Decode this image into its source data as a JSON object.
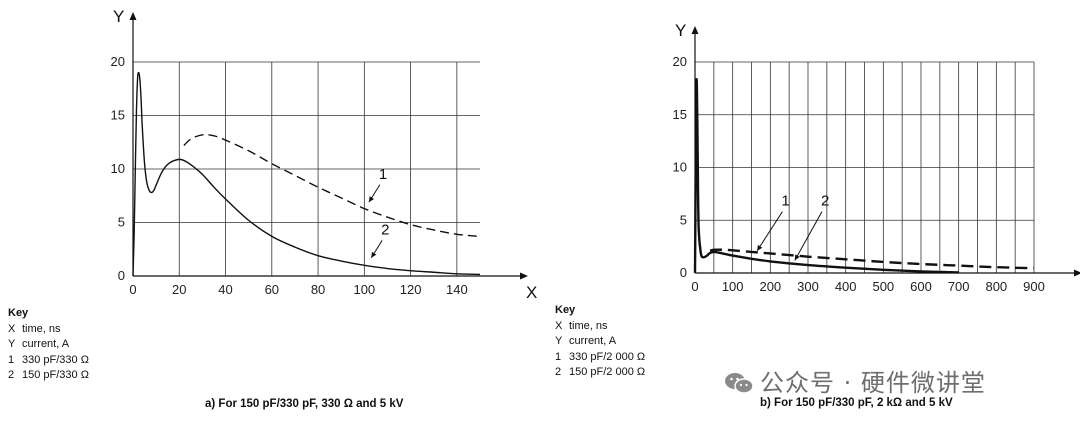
{
  "chart_data": [
    {
      "type": "line",
      "caption": "a)   For 150 pF/330 pF, 330 Ω and 5 kV",
      "xlabel": "X",
      "ylabel": "Y",
      "xlim": [
        0,
        150
      ],
      "ylim": [
        0,
        20
      ],
      "xticks": [
        0,
        20,
        40,
        60,
        80,
        100,
        120,
        140
      ],
      "yticks": [
        0,
        5,
        10,
        15,
        20
      ],
      "grid": true,
      "series": [
        {
          "name": "1",
          "style": "dashed",
          "x": [
            22,
            25,
            30,
            35,
            40,
            50,
            60,
            70,
            80,
            90,
            100,
            110,
            120,
            130,
            140,
            150
          ],
          "y": [
            12.2,
            12.8,
            13.2,
            13.1,
            12.7,
            11.7,
            10.5,
            9.4,
            8.3,
            7.3,
            6.3,
            5.5,
            4.8,
            4.3,
            3.9,
            3.7
          ]
        },
        {
          "name": "2",
          "style": "solid",
          "x": [
            0,
            0.5,
            1,
            1.5,
            2,
            2.5,
            3,
            3.5,
            4,
            5,
            6,
            7,
            8,
            9,
            10,
            12,
            14,
            16,
            18,
            20,
            22,
            25,
            30,
            35,
            40,
            50,
            60,
            70,
            80,
            90,
            100,
            110,
            120,
            130,
            140,
            150
          ],
          "y": [
            0,
            4,
            10,
            15.5,
            18.5,
            19,
            18.3,
            16.5,
            14,
            10.5,
            8.7,
            8,
            7.8,
            8,
            8.5,
            9.5,
            10.2,
            10.6,
            10.8,
            10.9,
            10.8,
            10.4,
            9.5,
            8.3,
            7.2,
            5.2,
            3.7,
            2.7,
            1.9,
            1.4,
            1,
            0.7,
            0.5,
            0.35,
            0.2,
            0.15
          ]
        }
      ],
      "annotations": [
        {
          "text": "1",
          "x": 108,
          "y": 8.9,
          "arrow_to": [
            102,
            6.9
          ]
        },
        {
          "text": "2",
          "x": 109,
          "y": 3.7,
          "arrow_to": [
            103,
            1.7
          ]
        }
      ]
    },
    {
      "type": "line",
      "caption": "b)   For 150 pF/330 pF, 2 kΩ and 5 kV",
      "xlabel": "X",
      "ylabel": "Y",
      "xlim": [
        0,
        900
      ],
      "ylim": [
        0,
        20
      ],
      "xticks": [
        0,
        100,
        200,
        300,
        400,
        500,
        600,
        700,
        800,
        900
      ],
      "yticks": [
        0,
        5,
        10,
        15,
        20
      ],
      "grid": true,
      "series": [
        {
          "name": "1",
          "style": "dashed",
          "x": [
            40,
            50,
            75,
            100,
            150,
            200,
            300,
            400,
            500,
            600,
            700,
            800,
            900
          ],
          "y": [
            2.1,
            2.2,
            2.2,
            2.15,
            2.0,
            1.85,
            1.55,
            1.3,
            1.05,
            0.85,
            0.7,
            0.55,
            0.45
          ]
        },
        {
          "name": "2",
          "style": "solid",
          "x": [
            0,
            2,
            4,
            6,
            8,
            10,
            15,
            20,
            30,
            40,
            50,
            60,
            80,
            100,
            150,
            200,
            300,
            400,
            500,
            600,
            700
          ],
          "y": [
            0,
            10,
            18.2,
            15,
            8,
            4,
            2,
            1.5,
            1.6,
            1.9,
            2.0,
            1.95,
            1.8,
            1.65,
            1.35,
            1.1,
            0.75,
            0.5,
            0.3,
            0.15,
            0.05
          ]
        }
      ],
      "annotations": [
        {
          "text": "1",
          "x": 240,
          "y": 6.2,
          "arrow_to": [
            165,
            2.1
          ]
        },
        {
          "text": "2",
          "x": 345,
          "y": 6.2,
          "arrow_to": [
            265,
            1.2
          ]
        }
      ]
    }
  ],
  "keys": [
    {
      "title": "Key",
      "rows": [
        {
          "k": "X",
          "v": "time, ns"
        },
        {
          "k": "Y",
          "v": "current, A"
        },
        {
          "k": "1",
          "v": "330 pF/330 Ω"
        },
        {
          "k": "2",
          "v": "150 pF/330 Ω"
        }
      ]
    },
    {
      "title": "Key",
      "rows": [
        {
          "k": "X",
          "v": "time, ns"
        },
        {
          "k": "Y",
          "v": "current, A"
        },
        {
          "k": "1",
          "v": "330 pF/2 000 Ω"
        },
        {
          "k": "2",
          "v": "150 pF/2 000 Ω"
        }
      ]
    }
  ],
  "watermark": "公众号 · 硬件微讲堂",
  "colors": {
    "line": "#111111",
    "grid": "#333333",
    "watermark": "#6e6e6e"
  }
}
